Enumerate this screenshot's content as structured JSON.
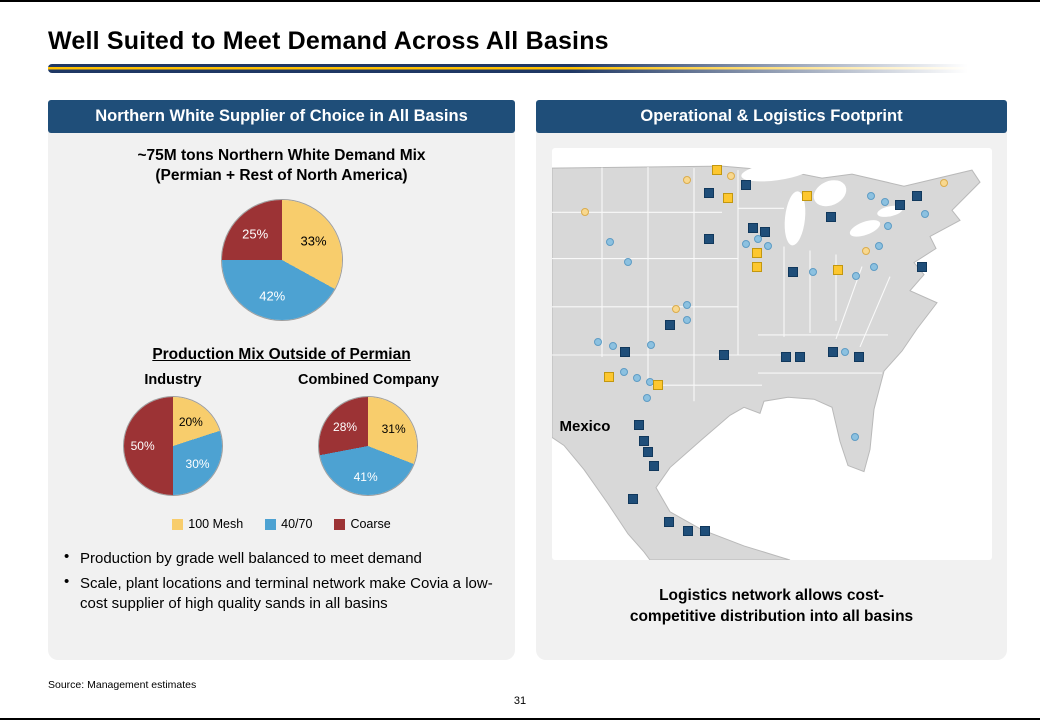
{
  "slide": {
    "title": "Well Suited to Meet Demand Across All Basins",
    "source": "Source:  Management estimates",
    "page_number": "31",
    "accent_navy": "#1F4E79",
    "accent_gold": "#FFC000"
  },
  "left_panel": {
    "header": "Northern White Supplier of Choice in All Basins",
    "demand_title_line1": "~75M tons Northern White Demand Mix",
    "demand_title_line2": "(Permian + Rest of North America)",
    "production_title": "Production Mix Outside of Permian",
    "bullets": [
      "Production by grade well balanced to meet demand",
      "Scale, plant locations and terminal network make Covia a low-cost supplier of high quality sands in all basins"
    ]
  },
  "right_panel": {
    "header": "Operational & Logistics Footprint",
    "mexico_label": "Mexico",
    "caption_line1": "Logistics network allows cost-",
    "caption_line2": "competitive distribution into all basins",
    "marker_legend": {
      "navy-square": "terminal/plant (navy square)",
      "yellow-square": "plant (yellow square)",
      "blue-circle": "40/70 location (blue dot)",
      "yellow-circle": "100 mesh location (yellow dot)"
    },
    "map_markers": [
      {
        "type": "yellow-square",
        "x": 37.7,
        "y": 5.4
      },
      {
        "type": "yellow-circle",
        "x": 40.9,
        "y": 6.8
      },
      {
        "type": "navy-square",
        "x": 44.3,
        "y": 9.0
      },
      {
        "type": "navy-square",
        "x": 35.7,
        "y": 11.0
      },
      {
        "type": "yellow-square",
        "x": 40.0,
        "y": 12.2
      },
      {
        "type": "yellow-circle",
        "x": 30.7,
        "y": 7.8
      },
      {
        "type": "yellow-square",
        "x": 58.0,
        "y": 11.7
      },
      {
        "type": "navy-square",
        "x": 63.6,
        "y": 16.8
      },
      {
        "type": "yellow-circle",
        "x": 89.1,
        "y": 8.5
      },
      {
        "type": "blue-circle",
        "x": 72.5,
        "y": 11.7
      },
      {
        "type": "blue-circle",
        "x": 75.9,
        "y": 13.2
      },
      {
        "type": "navy-square",
        "x": 79.1,
        "y": 13.9
      },
      {
        "type": "navy-square",
        "x": 83.0,
        "y": 11.7
      },
      {
        "type": "blue-circle",
        "x": 84.8,
        "y": 15.9
      },
      {
        "type": "blue-circle",
        "x": 76.4,
        "y": 19.0
      },
      {
        "type": "yellow-circle",
        "x": 7.5,
        "y": 15.6
      },
      {
        "type": "blue-circle",
        "x": 13.2,
        "y": 22.7
      },
      {
        "type": "blue-circle",
        "x": 17.3,
        "y": 27.6
      },
      {
        "type": "navy-square",
        "x": 45.7,
        "y": 19.3
      },
      {
        "type": "navy-square",
        "x": 48.6,
        "y": 20.5
      },
      {
        "type": "blue-circle",
        "x": 47.0,
        "y": 22.0
      },
      {
        "type": "blue-circle",
        "x": 44.3,
        "y": 23.2
      },
      {
        "type": "blue-circle",
        "x": 49.3,
        "y": 23.9
      },
      {
        "type": "yellow-square",
        "x": 46.6,
        "y": 25.4
      },
      {
        "type": "navy-square",
        "x": 35.9,
        "y": 22.2
      },
      {
        "type": "yellow-square",
        "x": 46.6,
        "y": 29.0
      },
      {
        "type": "navy-square",
        "x": 54.8,
        "y": 30.0
      },
      {
        "type": "blue-circle",
        "x": 59.5,
        "y": 30.0
      },
      {
        "type": "yellow-square",
        "x": 65.0,
        "y": 29.5
      },
      {
        "type": "blue-circle",
        "x": 69.1,
        "y": 31.0
      },
      {
        "type": "blue-circle",
        "x": 73.2,
        "y": 29.0
      },
      {
        "type": "navy-square",
        "x": 84.3,
        "y": 29.0
      },
      {
        "type": "yellow-circle",
        "x": 71.4,
        "y": 25.1
      },
      {
        "type": "blue-circle",
        "x": 74.5,
        "y": 23.9
      },
      {
        "type": "yellow-circle",
        "x": 28.4,
        "y": 39.0
      },
      {
        "type": "blue-circle",
        "x": 30.7,
        "y": 38.0
      },
      {
        "type": "navy-square",
        "x": 27.0,
        "y": 42.9
      },
      {
        "type": "blue-circle",
        "x": 30.7,
        "y": 41.7
      },
      {
        "type": "blue-circle",
        "x": 10.5,
        "y": 47.1
      },
      {
        "type": "blue-circle",
        "x": 13.9,
        "y": 48.0
      },
      {
        "type": "navy-square",
        "x": 16.8,
        "y": 49.5
      },
      {
        "type": "blue-circle",
        "x": 22.7,
        "y": 47.8
      },
      {
        "type": "navy-square",
        "x": 39.1,
        "y": 50.2
      },
      {
        "type": "navy-square",
        "x": 53.2,
        "y": 50.7
      },
      {
        "type": "navy-square",
        "x": 56.4,
        "y": 50.7
      },
      {
        "type": "navy-square",
        "x": 63.9,
        "y": 49.5
      },
      {
        "type": "blue-circle",
        "x": 66.8,
        "y": 49.5
      },
      {
        "type": "navy-square",
        "x": 69.8,
        "y": 50.7
      },
      {
        "type": "yellow-square",
        "x": 13.0,
        "y": 55.6
      },
      {
        "type": "blue-circle",
        "x": 16.4,
        "y": 54.4
      },
      {
        "type": "blue-circle",
        "x": 19.5,
        "y": 55.9
      },
      {
        "type": "blue-circle",
        "x": 22.3,
        "y": 56.8
      },
      {
        "type": "yellow-square",
        "x": 24.3,
        "y": 57.6
      },
      {
        "type": "blue-circle",
        "x": 21.6,
        "y": 60.7
      },
      {
        "type": "blue-circle",
        "x": 68.9,
        "y": 70.2
      },
      {
        "type": "navy-square",
        "x": 19.8,
        "y": 67.3
      },
      {
        "type": "navy-square",
        "x": 21.1,
        "y": 71.0
      },
      {
        "type": "navy-square",
        "x": 22.0,
        "y": 73.9
      },
      {
        "type": "navy-square",
        "x": 23.4,
        "y": 77.3
      },
      {
        "type": "navy-square",
        "x": 18.6,
        "y": 85.1
      },
      {
        "type": "navy-square",
        "x": 26.8,
        "y": 90.7
      },
      {
        "type": "navy-square",
        "x": 31.1,
        "y": 93.0
      },
      {
        "type": "navy-square",
        "x": 34.8,
        "y": 93.0
      }
    ]
  },
  "chart_data": [
    {
      "type": "pie",
      "title": "~75M tons Northern White Demand Mix (Permian + Rest of North America)",
      "labels": [
        "100 Mesh",
        "40/70",
        "Coarse"
      ],
      "values": [
        33,
        42,
        25
      ],
      "colors": [
        "#F8CD6C",
        "#4DA2D2",
        "#9C3335"
      ],
      "label_colors": [
        "#000000",
        "#ffffff",
        "#ffffff"
      ],
      "legend_position": "below"
    },
    {
      "type": "pie",
      "title": "Industry",
      "labels": [
        "100 Mesh",
        "40/70",
        "Coarse"
      ],
      "values": [
        20,
        30,
        50
      ],
      "colors": [
        "#F8CD6C",
        "#4DA2D2",
        "#9C3335"
      ],
      "label_colors": [
        "#000000",
        "#ffffff",
        "#ffffff"
      ]
    },
    {
      "type": "pie",
      "title": "Combined Company",
      "labels": [
        "100 Mesh",
        "40/70",
        "Coarse"
      ],
      "values": [
        31,
        41,
        28
      ],
      "colors": [
        "#F8CD6C",
        "#4DA2D2",
        "#9C3335"
      ],
      "label_colors": [
        "#000000",
        "#ffffff",
        "#ffffff"
      ]
    }
  ]
}
